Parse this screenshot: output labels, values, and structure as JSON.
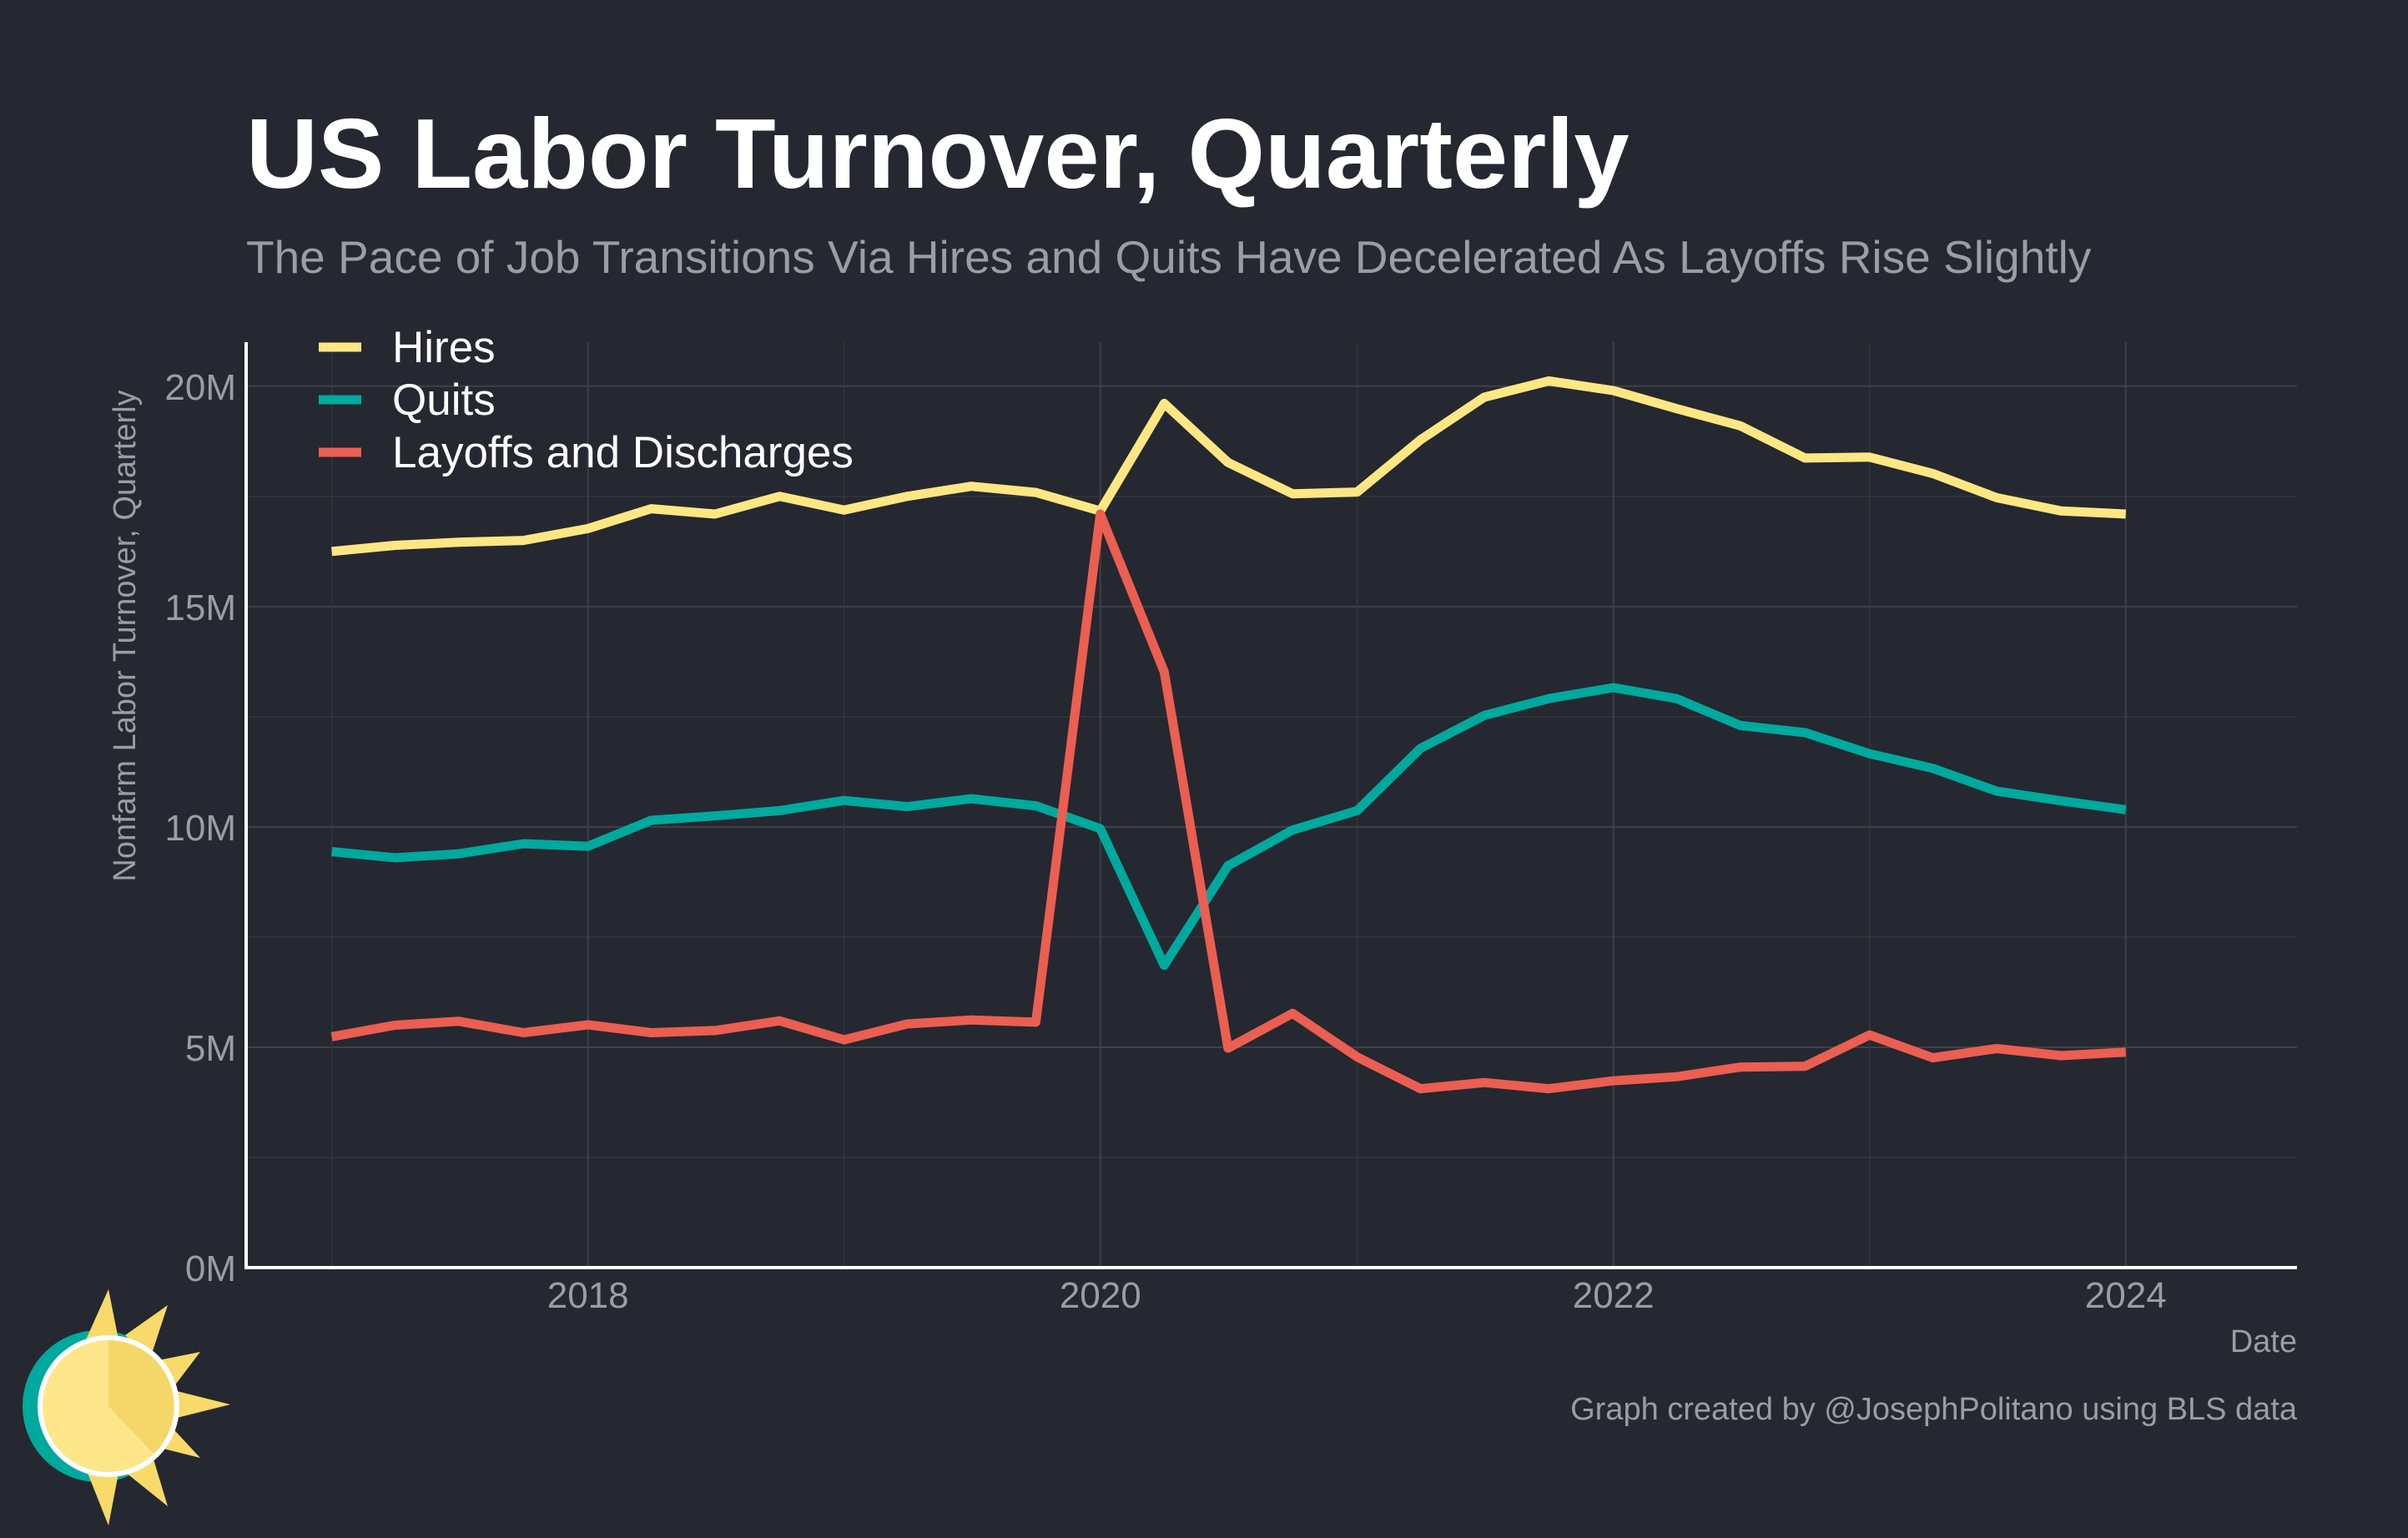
{
  "title": "US Labor Turnover, Quarterly",
  "subtitle": "The Pace of Job Transitions Via Hires and Quits Have Decelerated As Layoffs Rise Slightly",
  "caption": "Graph created by @JosephPolitano using BLS data",
  "logo_icon": "sun-logo-icon",
  "colors": {
    "background": "#252830",
    "hires": "#FEE783",
    "quits": "#00A99D",
    "layoffs": "#EB5E52",
    "text_primary": "#FFFFFF",
    "text_muted": "#9A9DA3",
    "grid": "#3B3E46",
    "axis": "#FFFFFF"
  },
  "chart_data": {
    "type": "line",
    "title": "US Labor Turnover, Quarterly",
    "subtitle": "The Pace of Job Transitions Via Hires and Quits Have Decelerated As Layoffs Rise Slightly",
    "xlabel": "Date",
    "ylabel": "Nonfarm Labor Turnover, Quarterly",
    "x_ticks": [
      "2018",
      "2020",
      "2022",
      "2024"
    ],
    "y_ticks": [
      "0M",
      "5M",
      "10M",
      "15M",
      "20M"
    ],
    "y_tick_values": [
      0,
      5,
      10,
      15,
      20
    ],
    "ylim": [
      0,
      21
    ],
    "xlim": [
      "2016-09-01",
      "2024-09-01"
    ],
    "x_tick_dates": [
      "2018-01-01",
      "2020-01-01",
      "2022-01-01",
      "2024-01-01"
    ],
    "y_unit": "millions",
    "grid": true,
    "legend_position": "top-left",
    "x": [
      "2017-01-01",
      "2017-04-01",
      "2017-07-01",
      "2017-10-01",
      "2018-01-01",
      "2018-04-01",
      "2018-07-01",
      "2018-10-01",
      "2019-01-01",
      "2019-04-01",
      "2019-07-01",
      "2019-10-01",
      "2020-01-01",
      "2020-04-01",
      "2020-07-01",
      "2020-10-01",
      "2021-01-01",
      "2021-04-01",
      "2021-07-01",
      "2021-10-01",
      "2022-01-01",
      "2022-04-01",
      "2022-07-01",
      "2022-10-01",
      "2023-01-01",
      "2023-04-01",
      "2023-07-01",
      "2023-10-01",
      "2024-01-01"
    ],
    "series": [
      {
        "name": "Hires",
        "color": "#FEE783",
        "values": [
          16.25,
          16.39,
          16.46,
          16.5,
          16.77,
          17.22,
          17.1,
          17.5,
          17.19,
          17.5,
          17.73,
          17.59,
          17.17,
          19.61,
          18.27,
          17.56,
          17.6,
          18.78,
          19.75,
          20.12,
          19.9,
          19.49,
          19.1,
          18.37,
          18.39,
          18.02,
          17.47,
          17.17,
          17.1
        ]
      },
      {
        "name": "Quits",
        "color": "#00A99D",
        "values": [
          9.44,
          9.3,
          9.39,
          9.62,
          9.56,
          10.15,
          10.25,
          10.37,
          10.6,
          10.46,
          10.64,
          10.48,
          9.96,
          6.86,
          9.12,
          9.93,
          10.37,
          11.78,
          12.53,
          12.91,
          13.16,
          12.91,
          12.3,
          12.14,
          11.66,
          11.33,
          10.81,
          10.59,
          10.39
        ]
      },
      {
        "name": "Layoffs and Discharges",
        "color": "#EB5E52",
        "values": [
          5.24,
          5.5,
          5.59,
          5.33,
          5.51,
          5.33,
          5.38,
          5.6,
          5.17,
          5.53,
          5.62,
          5.57,
          17.1,
          13.52,
          4.98,
          5.77,
          4.78,
          4.06,
          4.2,
          4.06,
          4.24,
          4.33,
          4.55,
          4.57,
          5.28,
          4.76,
          4.97,
          4.81,
          4.89
        ]
      }
    ]
  }
}
